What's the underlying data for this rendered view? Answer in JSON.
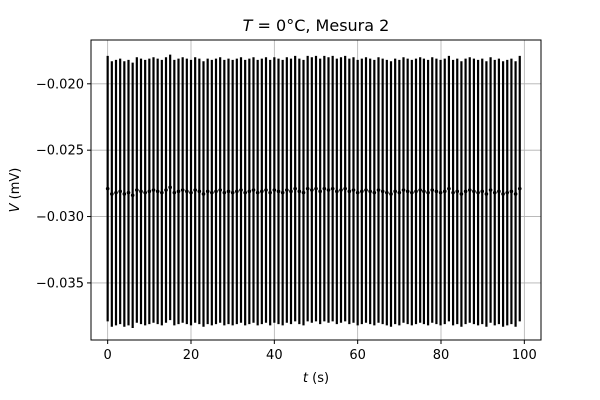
{
  "chart_data": {
    "type": "scatter",
    "title": {
      "symbol": "T",
      "text": " = 0°C, Mesura 2"
    },
    "xlabel": {
      "symbol": "t",
      "unit": " (s)"
    },
    "ylabel": {
      "symbol": "V",
      "unit": " (mV)"
    },
    "xlim": [
      -4,
      104
    ],
    "ylim": [
      -0.0393,
      -0.0167
    ],
    "xticks": [
      0,
      20,
      40,
      60,
      80,
      100
    ],
    "yticks": [
      -0.035,
      -0.03,
      -0.025,
      -0.02
    ],
    "ytick_labels": [
      "−0.035",
      "−0.030",
      "−0.025",
      "−0.020"
    ],
    "xtick_labels": [
      "0",
      "20",
      "40",
      "60",
      "80",
      "100"
    ],
    "grid": true,
    "error_bar": 0.01,
    "colors": {
      "marker": "#000000",
      "grid": "#b0b0b0"
    },
    "series": [
      {
        "x": [
          0,
          1,
          2,
          3,
          4,
          5,
          6,
          7,
          8,
          9,
          10,
          11,
          12,
          13,
          14,
          15,
          16,
          17,
          18,
          19,
          20,
          21,
          22,
          23,
          24,
          25,
          26,
          27,
          28,
          29,
          30,
          31,
          32,
          33,
          34,
          35,
          36,
          37,
          38,
          39,
          40,
          41,
          42,
          43,
          44,
          45,
          46,
          47,
          48,
          49,
          50,
          51,
          52,
          53,
          54,
          55,
          56,
          57,
          58,
          59,
          60,
          61,
          62,
          63,
          64,
          65,
          66,
          67,
          68,
          69,
          70,
          71,
          72,
          73,
          74,
          75,
          75.9,
          76.9,
          77.9,
          78.9,
          79.9,
          80.9,
          81.9,
          82.9,
          83.9,
          84.9,
          85.9,
          86.9,
          87.9,
          88.9,
          89.9,
          90.9,
          91.9,
          92.9,
          93.9,
          94.9,
          95.9,
          96.9,
          97.9,
          98.9
        ],
        "y": [
          -0.0279,
          -0.0283,
          -0.0282,
          -0.0281,
          -0.0283,
          -0.0282,
          -0.0284,
          -0.028,
          -0.0281,
          -0.0282,
          -0.0281,
          -0.028,
          -0.0281,
          -0.0282,
          -0.028,
          -0.0278,
          -0.0282,
          -0.0281,
          -0.028,
          -0.0281,
          -0.0282,
          -0.028,
          -0.0281,
          -0.0283,
          -0.0281,
          -0.0282,
          -0.0281,
          -0.028,
          -0.0282,
          -0.0281,
          -0.0282,
          -0.0281,
          -0.028,
          -0.0282,
          -0.0281,
          -0.028,
          -0.0282,
          -0.0281,
          -0.028,
          -0.0282,
          -0.028,
          -0.0281,
          -0.0282,
          -0.028,
          -0.0281,
          -0.0279,
          -0.0281,
          -0.0282,
          -0.0279,
          -0.028,
          -0.0279,
          -0.0281,
          -0.0279,
          -0.028,
          -0.0279,
          -0.0281,
          -0.028,
          -0.0279,
          -0.0281,
          -0.028,
          -0.0282,
          -0.0281,
          -0.028,
          -0.0281,
          -0.0282,
          -0.028,
          -0.0281,
          -0.0282,
          -0.0283,
          -0.0281,
          -0.0282,
          -0.028,
          -0.0281,
          -0.0282,
          -0.0281,
          -0.028,
          -0.0281,
          -0.0282,
          -0.028,
          -0.0281,
          -0.0282,
          -0.0281,
          -0.0279,
          -0.0282,
          -0.0281,
          -0.0283,
          -0.0281,
          -0.028,
          -0.0281,
          -0.0282,
          -0.0281,
          -0.0283,
          -0.028,
          -0.0282,
          -0.0281,
          -0.0283,
          -0.0282,
          -0.0281,
          -0.0283,
          -0.0279
        ]
      }
    ]
  }
}
